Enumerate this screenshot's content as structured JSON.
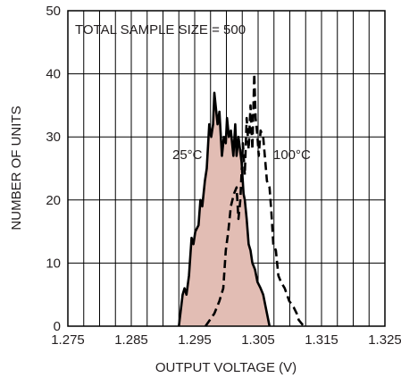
{
  "chart_data": {
    "type": "area",
    "title": "",
    "xlabel": "OUTPUT VOLTAGE (V)",
    "ylabel": "NUMBER OF UNITS",
    "xlim": [
      1.275,
      1.325
    ],
    "ylim": [
      0,
      50
    ],
    "x_ticks": [
      "1.275",
      "1.285",
      "1.295",
      "1.305",
      "1.315",
      "1.325"
    ],
    "y_ticks": [
      "0",
      "10",
      "20",
      "30",
      "40",
      "50"
    ],
    "grid": true,
    "annotation": "TOTAL SAMPLE SIZE = 500",
    "series_labels": [
      "25°C",
      "100°C"
    ],
    "colors": {
      "fill_25": "#e2bdb4",
      "line": "#000000",
      "grid": "#000000"
    },
    "series": [
      {
        "name": "25°C",
        "style": "solid-filled",
        "points": [
          [
            1.2925,
            0
          ],
          [
            1.2931,
            5
          ],
          [
            1.2934,
            6
          ],
          [
            1.2937,
            5
          ],
          [
            1.2941,
            8
          ],
          [
            1.2945,
            14
          ],
          [
            1.2948,
            13
          ],
          [
            1.2951,
            15
          ],
          [
            1.2956,
            16
          ],
          [
            1.2959,
            20
          ],
          [
            1.2962,
            19
          ],
          [
            1.2966,
            23
          ],
          [
            1.2969,
            25
          ],
          [
            1.2973,
            32
          ],
          [
            1.2976,
            30
          ],
          [
            1.2979,
            32
          ],
          [
            1.2981,
            37
          ],
          [
            1.2986,
            32
          ],
          [
            1.2989,
            34
          ],
          [
            1.2993,
            27
          ],
          [
            1.2996,
            30
          ],
          [
            1.2999,
            29
          ],
          [
            1.3001,
            33
          ],
          [
            1.3004,
            30
          ],
          [
            1.3007,
            31
          ],
          [
            1.3011,
            27
          ],
          [
            1.3014,
            32
          ],
          [
            1.3016,
            27
          ],
          [
            1.3019,
            30
          ],
          [
            1.3024,
            26
          ],
          [
            1.3027,
            21
          ],
          [
            1.3029,
            20
          ],
          [
            1.3032,
            17
          ],
          [
            1.3035,
            13
          ],
          [
            1.3038,
            12
          ],
          [
            1.3041,
            10
          ],
          [
            1.3045,
            9
          ],
          [
            1.3049,
            7
          ],
          [
            1.3054,
            6
          ],
          [
            1.3058,
            5
          ],
          [
            1.3062,
            3
          ],
          [
            1.3068,
            0
          ]
        ]
      },
      {
        "name": "100°C",
        "style": "dashed",
        "points": [
          [
            1.2967,
            0
          ],
          [
            1.2981,
            2
          ],
          [
            1.2989,
            4
          ],
          [
            1.2995,
            6
          ],
          [
            1.2999,
            12
          ],
          [
            1.3003,
            15
          ],
          [
            1.3007,
            19
          ],
          [
            1.3012,
            21
          ],
          [
            1.3016,
            22
          ],
          [
            1.3019,
            17
          ],
          [
            1.3022,
            20
          ],
          [
            1.3026,
            29
          ],
          [
            1.3029,
            24
          ],
          [
            1.3032,
            33
          ],
          [
            1.3035,
            28
          ],
          [
            1.3038,
            35
          ],
          [
            1.3041,
            28
          ],
          [
            1.3044,
            40
          ],
          [
            1.3046,
            33
          ],
          [
            1.3049,
            30
          ],
          [
            1.3051,
            27
          ],
          [
            1.3054,
            31
          ],
          [
            1.3058,
            30
          ],
          [
            1.3064,
            23
          ],
          [
            1.3068,
            22
          ],
          [
            1.3071,
            18
          ],
          [
            1.3074,
            13
          ],
          [
            1.3078,
            12
          ],
          [
            1.3082,
            8
          ],
          [
            1.3086,
            7
          ],
          [
            1.3092,
            6
          ],
          [
            1.3099,
            4
          ],
          [
            1.3106,
            3
          ],
          [
            1.3111,
            2
          ],
          [
            1.3114,
            1
          ],
          [
            1.3122,
            0
          ]
        ]
      }
    ]
  }
}
